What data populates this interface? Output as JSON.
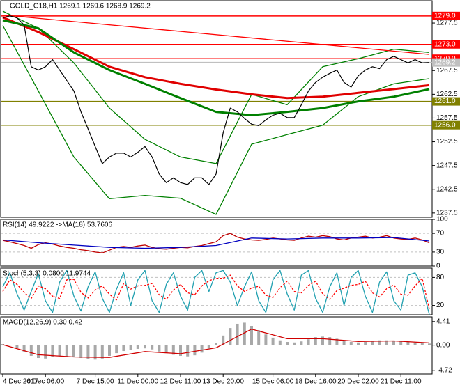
{
  "chart_data": [
    {
      "type": "line",
      "title": "GOLD_G18,H1  1269.1 1269.6 1268.9 1269.2",
      "categories": [
        "4 Dec 2017",
        null,
        null,
        null,
        null,
        null,
        "6 Dec 06:00",
        null,
        null,
        null,
        null,
        null,
        null,
        "7 Dec 15:00",
        null,
        null,
        null,
        null,
        null,
        "11 Dec 00:00",
        null,
        null,
        null,
        null,
        null,
        "12 Dec 11:00",
        null,
        null,
        null,
        null,
        null,
        "13 Dec 20:00",
        null,
        null,
        null,
        null,
        null,
        null,
        "15 Dec 06:00",
        null,
        null,
        null,
        null,
        null,
        "18 Dec 16:00",
        null,
        null,
        null,
        null,
        null,
        "20 Dec 02:00",
        null,
        null,
        null,
        null,
        null,
        "21 Dec 11:00",
        null,
        null,
        null,
        null
      ],
      "ylim": [
        1236.6,
        1282.2
      ],
      "yticks": [
        {
          "value": 1277.5,
          "label": "1277.5"
        },
        {
          "value": 1267.5,
          "label": "1267.5"
        },
        {
          "value": 1262.5,
          "label": "1262.5"
        },
        {
          "value": 1257.5,
          "label": "1257.5"
        },
        {
          "value": 1252.5,
          "label": "1252.5"
        },
        {
          "value": 1247.5,
          "label": "1247.5"
        },
        {
          "value": 1242.5,
          "label": "1242.5"
        },
        {
          "value": 1237.5,
          "label": "1237.5"
        }
      ],
      "grid": false,
      "levels": [
        {
          "value": 1279,
          "label": "1279.0",
          "color": "#ff0000"
        },
        {
          "value": 1273,
          "label": "1273.0",
          "color": "#ff0000"
        },
        {
          "value": 1270,
          "label": "1270.0",
          "color": "#ff0000"
        },
        {
          "value": 1269.2,
          "label": "1269.2",
          "color": "#c0c0c0"
        },
        {
          "value": 1261,
          "label": "1261.0",
          "color": "#808000"
        },
        {
          "value": 1256,
          "label": "1256.0",
          "color": "#808000"
        }
      ],
      "series": [
        {
          "color": "#008000",
          "style": "thin",
          "x": [
            0,
            5,
            10,
            15,
            20,
            25,
            30,
            35,
            40,
            45,
            50,
            55,
            60
          ],
          "values": [
            1280.0,
            1276.4,
            1269.1,
            1259.6,
            1253.0,
            1249.3,
            1247.9,
            1262.5,
            1260.3,
            1268.3,
            1270.0,
            1272.0,
            1271.3
          ]
        },
        {
          "color": "#008000",
          "style": "thin",
          "x": [
            0,
            5,
            10,
            15,
            20,
            25,
            30,
            35,
            40,
            45,
            50,
            55,
            60
          ],
          "values": [
            1277.0,
            1263.2,
            1249.3,
            1240.5,
            1241.2,
            1240.6,
            1237.2,
            1252.0,
            1254.0,
            1256.0,
            1262.0,
            1264.7,
            1265.8
          ]
        },
        {
          "color": "#ff0000",
          "style": "thin",
          "x": [
            0,
            60
          ],
          "values": [
            1279.2,
            1270.9
          ]
        },
        {
          "color": "#e00000",
          "style": "thick",
          "x": [
            0,
            5,
            10,
            15,
            20,
            25,
            30,
            35,
            40,
            45,
            50,
            55,
            60
          ],
          "values": [
            1278.7,
            1275.6,
            1272.0,
            1268.3,
            1266.1,
            1264.7,
            1263.5,
            1262.5,
            1261.7,
            1262.0,
            1262.8,
            1263.6,
            1264.4
          ]
        },
        {
          "color": "#008000",
          "style": "thick",
          "x": [
            0,
            5,
            10,
            15,
            20,
            25,
            30,
            35,
            40,
            45,
            50,
            55,
            60
          ],
          "values": [
            1278.1,
            1276.4,
            1271.3,
            1267.6,
            1264.7,
            1261.7,
            1258.8,
            1258.1,
            1258.8,
            1259.6,
            1261.0,
            1262.0,
            1263.6
          ]
        },
        {
          "color": "#000000",
          "style": "price",
          "values": [
            1278.6,
            1279,
            1278.6,
            1277.1,
            1268.3,
            1267.6,
            1268.3,
            1269.8,
            1267.6,
            1265.4,
            1263.2,
            1258.8,
            1255.2,
            1251.5,
            1247.9,
            1249.3,
            1250.1,
            1250.1,
            1249.3,
            1250.3,
            1251.5,
            1249.3,
            1245.7,
            1243.9,
            1244.9,
            1243.9,
            1243.5,
            1244.9,
            1244.9,
            1243.5,
            1245.7,
            1254.4,
            1259.6,
            1258.8,
            1257.4,
            1256.2,
            1255.9,
            1257.1,
            1258.1,
            1258.5,
            1257.6,
            1257.6,
            1260.3,
            1263.2,
            1265.0,
            1266.1,
            1266.9,
            1267.6,
            1265.0,
            1264.0,
            1266.4,
            1267.6,
            1268.3,
            1267.9,
            1269.8,
            1270.5,
            1269.8,
            1269.1,
            1269.8,
            1269.1,
            1269.2
          ]
        }
      ]
    },
    {
      "type": "line",
      "title": "RSI(14) 49.9222 ->MA(18) 53.7606",
      "ylim": [
        0,
        100
      ],
      "yticks": [
        100,
        70,
        30,
        0
      ],
      "grid": "dashed",
      "series": [
        {
          "color": "#c00000",
          "style": "thin",
          "values": [
            55,
            52,
            48,
            44,
            38,
            46,
            50,
            47,
            43,
            40,
            38,
            35,
            33,
            30,
            28,
            34,
            40,
            42,
            40,
            43,
            45,
            40,
            37,
            36,
            38,
            40,
            39,
            42,
            44,
            48,
            52,
            65,
            70,
            62,
            58,
            56,
            55,
            57,
            60,
            58,
            56,
            55,
            60,
            64,
            62,
            65,
            63,
            58,
            56,
            60,
            62,
            64,
            60,
            62,
            65,
            60,
            58,
            57,
            60,
            56,
            49.9222
          ]
        },
        {
          "color": "#0000c0",
          "style": "thin",
          "x": [
            0,
            5,
            10,
            15,
            20,
            25,
            30,
            35,
            40,
            45,
            50,
            55,
            60
          ],
          "values": [
            56,
            50,
            45,
            40,
            38,
            40,
            44,
            60,
            58,
            60,
            60,
            61,
            53.7606
          ]
        }
      ]
    },
    {
      "type": "line",
      "title": "Stoch(5,3,3) 0.0800 11.9744",
      "ylim": [
        0,
        100
      ],
      "yticks": [
        80,
        20
      ],
      "grid": "dashed",
      "series": [
        {
          "color": "#20a0b0",
          "style": "thin",
          "values": [
            60,
            90,
            45,
            10,
            50,
            88,
            30,
            5,
            70,
            95,
            40,
            8,
            60,
            92,
            35,
            5,
            55,
            90,
            20,
            75,
            95,
            30,
            5,
            65,
            90,
            40,
            10,
            80,
            95,
            50,
            90,
            95,
            70,
            20,
            60,
            92,
            30,
            5,
            75,
            95,
            45,
            10,
            85,
            95,
            35,
            5,
            60,
            90,
            20,
            80,
            95,
            40,
            5,
            70,
            92,
            30,
            10,
            85,
            90,
            60,
            0.08
          ]
        },
        {
          "color": "#ff0000",
          "style": "dashed",
          "values": [
            50,
            75,
            65,
            48,
            35,
            62,
            56,
            40,
            35,
            75,
            76,
            48,
            36,
            53,
            62,
            44,
            32,
            67,
            55,
            62,
            63,
            67,
            43,
            33,
            53,
            65,
            47,
            43,
            62,
            73,
            78,
            78,
            85,
            62,
            50,
            57,
            61,
            42,
            37,
            58,
            72,
            50,
            47,
            63,
            72,
            45,
            33,
            52,
            57,
            63,
            65,
            72,
            47,
            38,
            56,
            64,
            44,
            42,
            62,
            78,
            11.9744
          ]
        }
      ]
    },
    {
      "type": "line",
      "title": "MACD(12,26,9) 0.30 0.42",
      "ylim": [
        -5.4,
        5.3
      ],
      "yticks": [
        4.41,
        {
          "value": 0,
          "label": "0.00"
        },
        -4.72
      ],
      "grid": false,
      "series": [
        {
          "color": "#a8a8a8",
          "style": "bar",
          "values": [
            0.2,
            0.0,
            -0.5,
            -1.2,
            -2.0,
            -2.4,
            -2.5,
            -2.2,
            -2.0,
            -2.1,
            -2.2,
            -2.4,
            -2.6,
            -2.7,
            -2.5,
            -2.0,
            -1.5,
            -1.1,
            -0.9,
            -0.7,
            -0.6,
            -0.8,
            -1.2,
            -1.5,
            -1.8,
            -2.0,
            -2.1,
            -1.9,
            -1.4,
            -0.6,
            0.4,
            1.8,
            3.2,
            4.0,
            4.2,
            3.6,
            2.8,
            2.0,
            1.4,
            0.9,
            0.6,
            0.5,
            0.7,
            1.1,
            1.5,
            1.6,
            1.5,
            1.2,
            0.9,
            0.6,
            0.5,
            0.6,
            0.8,
            0.9,
            0.9,
            0.8,
            0.7,
            0.6,
            0.5,
            0.4,
            0.3
          ]
        },
        {
          "color": "#d00000",
          "style": "thin",
          "x": [
            0,
            5,
            10,
            15,
            20,
            25,
            30,
            35,
            40,
            45,
            50,
            55,
            60
          ],
          "values": [
            0.1,
            -1.8,
            -2.2,
            -2.3,
            -1.2,
            -1.6,
            -0.5,
            3.0,
            1.2,
            1.2,
            0.7,
            0.8,
            0.42
          ]
        }
      ]
    }
  ]
}
